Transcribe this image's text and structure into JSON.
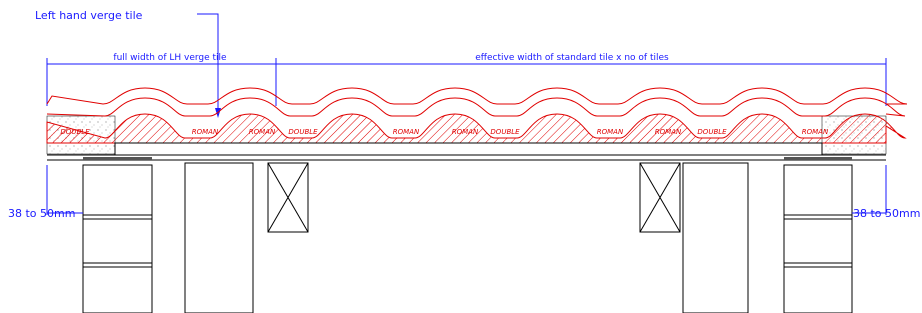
{
  "labels": {
    "verge_tile": "Left hand verge tile",
    "full_width": "full width of LH verge tile",
    "effective_width": "effective width of standard tile x no of tiles",
    "gap_left": "38 to 50mm",
    "gap_right": "38 to 50mm"
  },
  "tile_labels": [
    "DOUBLE",
    "ROMAN",
    "ROMAN",
    "DOUBLE",
    "ROMAN",
    "ROMAN",
    "DOUBLE",
    "ROMAN",
    "ROMAN",
    "DOUBLE",
    "ROMAN"
  ]
}
